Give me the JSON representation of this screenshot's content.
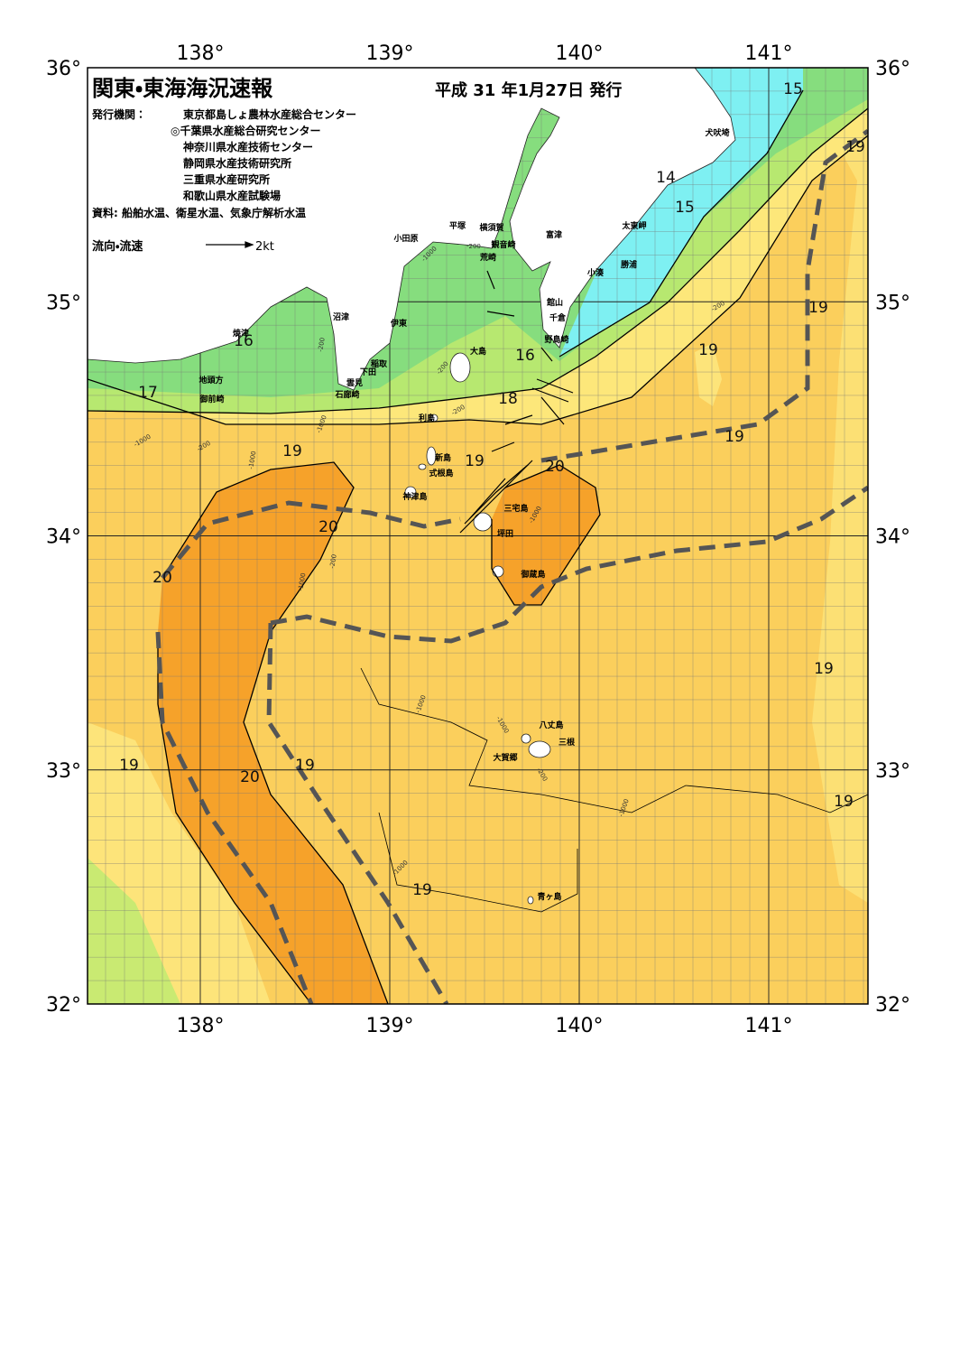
{
  "header": {
    "title": "関東・東海海況速報",
    "issue_date": "平成 31 年1月27日 発行",
    "issuers_label": "発行機関：",
    "issuers": [
      "東京都島しょ農林水産総合センター",
      "◎千葉県水産総合研究センター",
      "神奈川県水産技術センター",
      "静岡県水産技術研究所",
      "三重県水産研究所",
      "和歌山県水産試験場"
    ],
    "sources": "資料: 船舶水温、衛星水温、気象庁解析水温",
    "legend_label": "流向・流速",
    "legend_speed": "2kt"
  },
  "axes": {
    "lon": [
      {
        "value": 138,
        "label": "138°"
      },
      {
        "value": 139,
        "label": "139°"
      },
      {
        "value": 140,
        "label": "140°"
      },
      {
        "value": 141,
        "label": "141°"
      }
    ],
    "lat": [
      {
        "value": 36,
        "label": "36°"
      },
      {
        "value": 35,
        "label": "35°"
      },
      {
        "value": 34,
        "label": "34°"
      },
      {
        "value": 33,
        "label": "33°"
      },
      {
        "value": 32,
        "label": "32°"
      }
    ]
  },
  "places": [
    "犬吠埼",
    "太東岬",
    "勝浦",
    "小湊",
    "富津",
    "館山",
    "千倉",
    "野島崎",
    "横須賀",
    "観音崎",
    "平塚",
    "荒崎",
    "小田原",
    "沼津",
    "伊東",
    "稲取",
    "下田",
    "雲見",
    "石廊崎",
    "焼津",
    "地頭方",
    "御前崎",
    "大島",
    "利島",
    "新島",
    "式根島",
    "神津島",
    "三宅島",
    "坪田",
    "御蔵島",
    "八丈島",
    "三根",
    "大賀郷",
    "青ヶ島"
  ],
  "temperature_labels": [
    "15",
    "19",
    "14",
    "15",
    "19",
    "19",
    "16",
    "17",
    "16",
    "18",
    "19",
    "19",
    "20",
    "19",
    "20",
    "20",
    "19",
    "19",
    "20",
    "19",
    "19",
    "19"
  ],
  "depth_labels": [
    "-200",
    "-1000",
    "-200",
    "-1000",
    "-200",
    "-200",
    "-1000",
    "-200",
    "-1000",
    "-1000",
    "-200",
    "-1000",
    "-1000",
    "-1000",
    "-1000",
    "-200",
    "-1000",
    "-200"
  ]
}
